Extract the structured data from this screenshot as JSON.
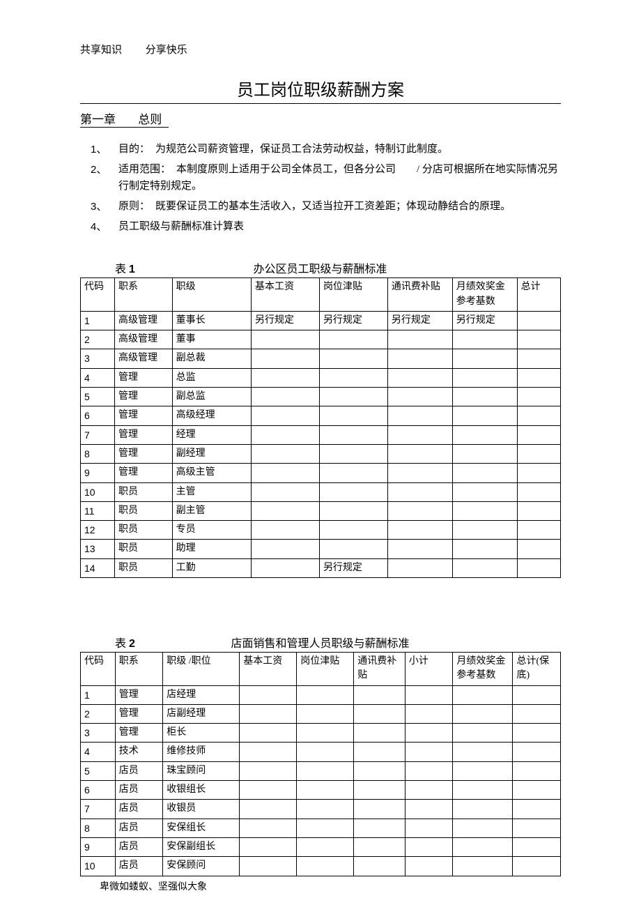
{
  "header": {
    "left": "共享知识",
    "right": "分享快乐"
  },
  "title": "员工岗位职级薪酬方案",
  "chapter": {
    "num": "第一章",
    "name": "总则"
  },
  "list": [
    {
      "num": "1、",
      "label": "目的：",
      "text": "为规范公司薪资管理，保证员工合法劳动权益，特制订此制度。"
    },
    {
      "num": "2、",
      "label": "适用范围：",
      "text": "本制度原则上适用于公司全体员工，但各分公司　　/ 分店可根据所在地实际情况另行制定特别规定。"
    },
    {
      "num": "3、",
      "label": "原则：",
      "text": "既要保证员工的基本生活收入，又适当拉开工资差距；体现动静结合的原理。"
    },
    {
      "num": "4、",
      "label": "",
      "text": "员工职级与薪酬标准计算表"
    }
  ],
  "table1": {
    "caption_left_prefix": "表",
    "caption_left_num": "1",
    "caption_center": "办公区员工职级与薪酬标准",
    "columns": [
      "代码",
      "职系",
      "职级",
      "基本工资",
      "岗位津贴",
      "通讯费补贴",
      "月绩效奖金参考基数",
      "总计"
    ],
    "rows": [
      [
        "1",
        "高级管理",
        "董事长",
        "另行规定",
        "另行规定",
        "另行规定",
        "另行规定",
        ""
      ],
      [
        "2",
        "高级管理",
        "董事",
        "",
        "",
        "",
        "",
        ""
      ],
      [
        "3",
        "高级管理",
        "副总裁",
        "",
        "",
        "",
        "",
        ""
      ],
      [
        "4",
        "管理",
        "总监",
        "",
        "",
        "",
        "",
        ""
      ],
      [
        "5",
        "管理",
        "副总监",
        "",
        "",
        "",
        "",
        ""
      ],
      [
        "6",
        "管理",
        "高级经理",
        "",
        "",
        "",
        "",
        ""
      ],
      [
        "7",
        "管理",
        "经理",
        "",
        "",
        "",
        "",
        ""
      ],
      [
        "8",
        "管理",
        "副经理",
        "",
        "",
        "",
        "",
        ""
      ],
      [
        "9",
        "管理",
        "高级主管",
        "",
        "",
        "",
        "",
        ""
      ],
      [
        "10",
        "职员",
        "主管",
        "",
        "",
        "",
        "",
        ""
      ],
      [
        "11",
        "职员",
        "副主管",
        "",
        "",
        "",
        "",
        ""
      ],
      [
        "12",
        "职员",
        "专员",
        "",
        "",
        "",
        "",
        ""
      ],
      [
        "13",
        "职员",
        "助理",
        "",
        "",
        "",
        "",
        ""
      ],
      [
        "14",
        "职员",
        "工勤",
        "",
        "另行规定",
        "",
        "",
        ""
      ]
    ]
  },
  "table2": {
    "caption_left_prefix": "表",
    "caption_left_num": "2",
    "caption_center": "店面销售和管理人员职级与薪酬标准",
    "columns": [
      "代码",
      "职系",
      "职级 /职位",
      "基本工资",
      "岗位津贴",
      "通讯费补贴",
      "小计",
      "月绩效奖金参考基数",
      "总计(保底)"
    ],
    "rows": [
      [
        "1",
        "管理",
        "店经理",
        "",
        "",
        "",
        "",
        "",
        ""
      ],
      [
        "2",
        "管理",
        "店副经理",
        "",
        "",
        "",
        "",
        "",
        ""
      ],
      [
        "3",
        "管理",
        "柜长",
        "",
        "",
        "",
        "",
        "",
        ""
      ],
      [
        "4",
        "技术",
        "维修技师",
        "",
        "",
        "",
        "",
        "",
        ""
      ],
      [
        "5",
        "店员",
        "珠宝顾问",
        "",
        "",
        "",
        "",
        "",
        ""
      ],
      [
        "6",
        "店员",
        "收银组长",
        "",
        "",
        "",
        "",
        "",
        ""
      ],
      [
        "7",
        "店员",
        "收银员",
        "",
        "",
        "",
        "",
        "",
        ""
      ],
      [
        "8",
        "店员",
        "安保组长",
        "",
        "",
        "",
        "",
        "",
        ""
      ],
      [
        "9",
        "店员",
        "安保副组长",
        "",
        "",
        "",
        "",
        "",
        ""
      ],
      [
        "10",
        "店员",
        "安保顾问",
        "",
        "",
        "",
        "",
        "",
        ""
      ]
    ]
  },
  "footer": "卑微如蝼蚁、坚强似大象"
}
